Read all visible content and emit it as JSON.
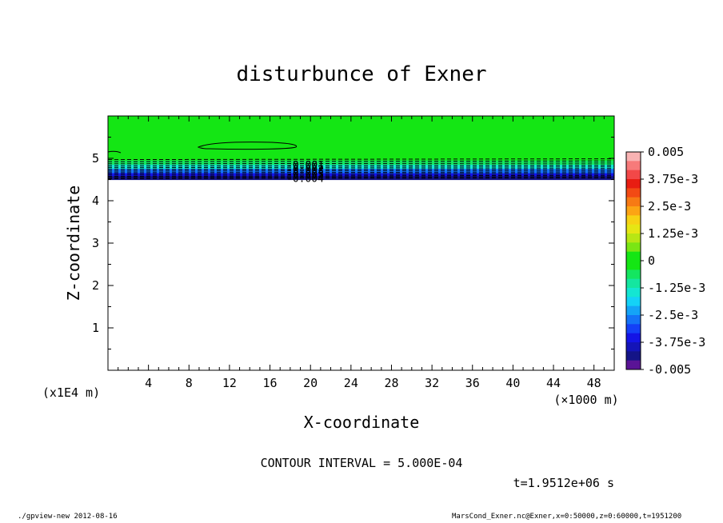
{
  "chart_data": {
    "type": "heatmap",
    "title": "disturbunce of Exner",
    "xlabel": "X-coordinate",
    "ylabel": "Z-coordinate",
    "x_unit": "(×1000 m)",
    "y_unit": "(x1E4 m)",
    "xlim": [
      0,
      50
    ],
    "ylim": [
      0,
      6
    ],
    "x_ticks": [
      4,
      8,
      12,
      16,
      20,
      24,
      28,
      32,
      36,
      40,
      44,
      48
    ],
    "y_ticks": [
      1,
      2,
      3,
      4,
      5
    ],
    "x_ticklabels": [
      "4",
      "8",
      "12",
      "16",
      "20",
      "24",
      "28",
      "32",
      "36",
      "40",
      "44",
      "48"
    ],
    "y_ticklabels": [
      "1",
      "2",
      "3",
      "4",
      "5"
    ],
    "data_region": {
      "z_min": 4.5,
      "z_max": 6.0
    },
    "profile": [
      {
        "z": 6.0,
        "value": 0.0
      },
      {
        "z": 5.2,
        "value": 0.0
      },
      {
        "z": 4.95,
        "value": -0.0005
      },
      {
        "z": 4.85,
        "value": -0.001
      },
      {
        "z": 4.75,
        "value": -0.002
      },
      {
        "z": 4.65,
        "value": -0.003
      },
      {
        "z": 4.58,
        "value": -0.004
      },
      {
        "z": 4.5,
        "value": -0.005
      }
    ],
    "contour_labels": [
      "-0.001",
      "-0.002",
      "-0.003",
      "-0.004"
    ],
    "contour_interval_text": "CONTOUR INTERVAL = 5.000E-04",
    "time_text": "t=1.9512e+06 s",
    "colorbar": {
      "min": -0.005,
      "max": 0.005,
      "tick_labels": [
        "0.005",
        "3.75e-3",
        "2.5e-3",
        "1.25e-3",
        "0",
        "-1.25e-3",
        "-2.5e-3",
        "-3.75e-3",
        "-0.005"
      ],
      "colors": [
        "#f9b3b3",
        "#f77a7a",
        "#f24848",
        "#e81d12",
        "#f24a14",
        "#f77a14",
        "#fca414",
        "#f7d214",
        "#e6e614",
        "#b8e614",
        "#7ae614",
        "#14e614",
        "#14e614",
        "#14e660",
        "#14e6a0",
        "#14e6d2",
        "#14d2f7",
        "#14a4f7",
        "#1473f7",
        "#1440f7",
        "#1414e6",
        "#1414b8",
        "#141487",
        "#5a1496"
      ]
    }
  },
  "footer": {
    "left": "./gpview-new   2012-08-16",
    "right": "MarsCond_Exner.nc@Exner,x=0:50000,z=0:60000,t=1951200"
  }
}
